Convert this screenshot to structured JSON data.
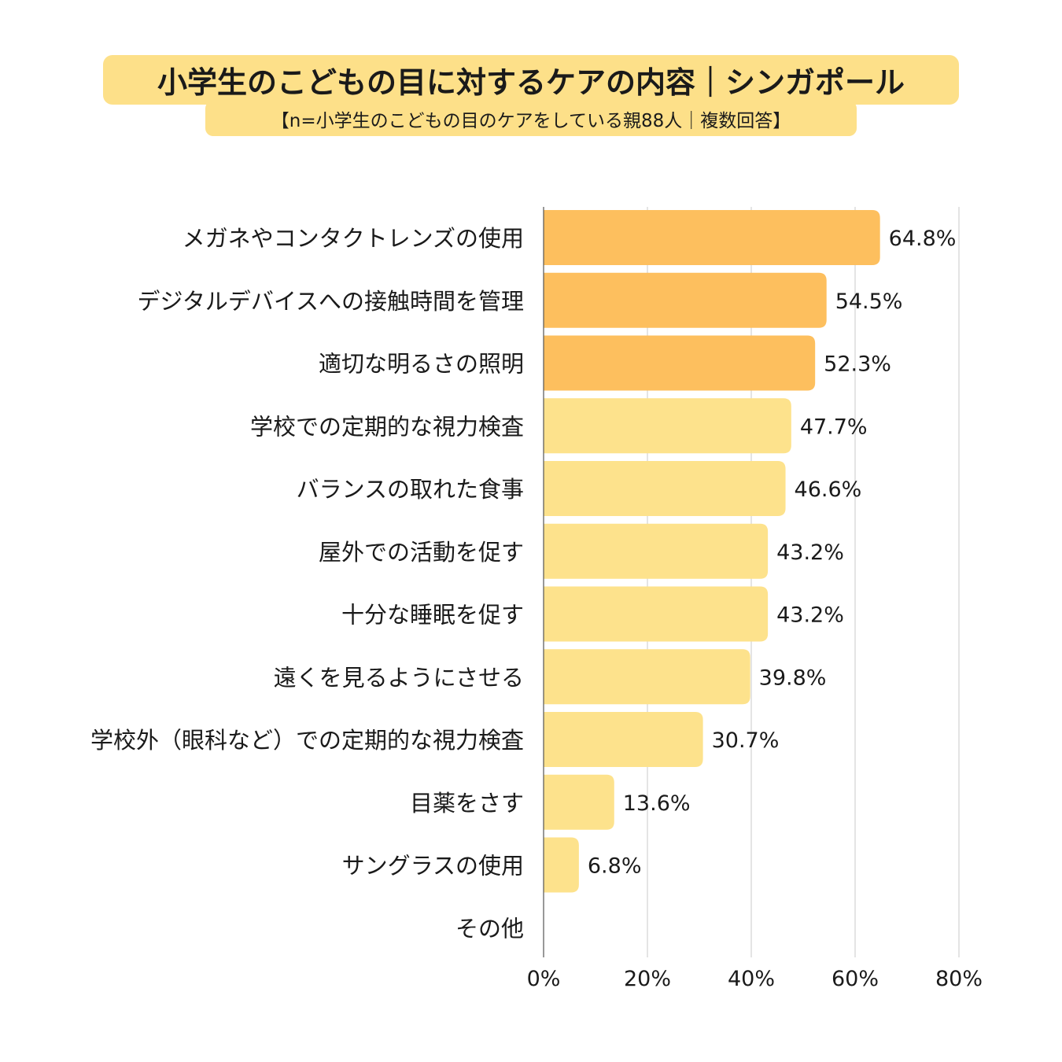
{
  "chart_data": {
    "type": "bar",
    "orientation": "horizontal",
    "title": "小学生のこどもの目に対するケアの内容｜シンガポール",
    "subtitle": "【n=小学生のこどもの目のケアをしている親88人｜複数回答】",
    "categories": [
      "メガネやコンタクトレンズの使用",
      "デジタルデバイスへの接触時間を管理",
      "適切な明るさの照明",
      "学校での定期的な視力検査",
      "バランスの取れた食事",
      "屋外での活動を促す",
      "十分な睡眠を促す",
      "遠くを見るようにさせる",
      "学校外（眼科など）での定期的な視力検査",
      "目薬をさす",
      "サングラスの使用",
      "その他"
    ],
    "values": [
      64.8,
      54.5,
      52.3,
      47.7,
      46.6,
      43.2,
      43.2,
      39.8,
      30.7,
      13.6,
      6.8,
      null
    ],
    "value_labels": [
      "64.8%",
      "54.5%",
      "52.3%",
      "47.7%",
      "46.6%",
      "43.2%",
      "43.2%",
      "39.8%",
      "30.7%",
      "13.6%",
      "6.8%",
      ""
    ],
    "highlight_count": 3,
    "xlim": [
      0,
      80
    ],
    "xticks": [
      "0%",
      "20%",
      "40%",
      "60%",
      "80%"
    ],
    "xtick_values": [
      0,
      20,
      40,
      60,
      80
    ],
    "grid": true,
    "xlabel": "",
    "ylabel": ""
  },
  "colors": {
    "title_bg": "#fde089",
    "bar_highlight": "#fdbf5e",
    "bar_normal": "#fde28c",
    "grid": "#c8c8c8",
    "axis": "#555555",
    "text": "#1a1a1a"
  }
}
